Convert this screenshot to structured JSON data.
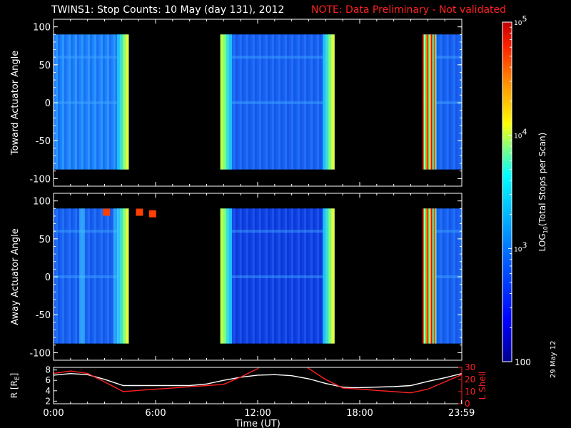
{
  "title": "TWINS1: Stop Counts: 10 May (day 131), 2012",
  "note": "NOTE: Data Preliminary - Not validated",
  "date_stamp": "29 May 12",
  "colors": {
    "note": "#ff2020",
    "r_line": "#ffffff",
    "l_line": "#ff2020",
    "background": "#000000"
  },
  "chart_data": [
    {
      "type": "heatmap",
      "panel": "toward",
      "ylabel": "Toward Actuator Angle",
      "ylim": [
        -110,
        110
      ],
      "yticks": [
        -100,
        -50,
        0,
        50,
        100
      ],
      "xlim": [
        0,
        24
      ],
      "angle_range": [
        -88,
        90
      ],
      "segments": [
        {
          "x_start": 0.0,
          "x_end": 4.4,
          "level": "high-blue",
          "edge_high_end": true
        },
        {
          "x_start": 9.8,
          "x_end": 16.5,
          "level": "blue",
          "edge_high_start": true,
          "edge_high_end": true
        },
        {
          "x_start": 21.7,
          "x_end": 24.0,
          "level": "blue",
          "striped_start": true
        }
      ]
    },
    {
      "type": "heatmap",
      "panel": "away",
      "ylabel": "Away Actuator Angle",
      "ylim": [
        -110,
        110
      ],
      "yticks": [
        -100,
        -50,
        0,
        50,
        100
      ],
      "xlim": [
        0,
        24
      ],
      "angle_range": [
        -88,
        90
      ],
      "segments": [
        {
          "x_start": 0.0,
          "x_end": 4.4,
          "level": "blue",
          "edge_high_end": true,
          "hot_spots_top": true
        },
        {
          "x_start": 9.8,
          "x_end": 16.5,
          "level": "deep-blue",
          "edge_high_start": true,
          "edge_high_end": true
        },
        {
          "x_start": 21.7,
          "x_end": 24.0,
          "level": "blue",
          "striped_start": true
        }
      ]
    },
    {
      "type": "line",
      "panel": "orbit",
      "xlabel": "Time (UT)",
      "xlim": [
        0,
        24
      ],
      "xticks": [
        "0:00",
        "6:00",
        "12:00",
        "18:00",
        "23:59"
      ],
      "xtick_values": [
        0,
        6,
        12,
        18,
        23.983
      ],
      "left_axis": {
        "label": "R [R_E]",
        "label_main": "R [R",
        "label_sub": "E",
        "label_close": "]",
        "ylim": [
          1.5,
          8.5
        ],
        "yticks": [
          2,
          4,
          6,
          8
        ]
      },
      "right_axis": {
        "label": "L Shell",
        "ylim": [
          0,
          30
        ],
        "yticks": [
          0,
          10,
          20,
          30
        ]
      },
      "series": [
        {
          "axis": "left",
          "color": "#ffffff",
          "x": [
            0,
            1,
            2,
            3,
            4.1,
            5,
            6,
            7,
            8,
            9,
            10,
            11,
            12,
            13,
            14,
            15,
            16,
            17,
            17.5,
            18,
            19,
            20,
            21,
            22,
            23,
            24
          ],
          "y": [
            7.0,
            7.3,
            7.1,
            6.2,
            5.0,
            5.0,
            5.0,
            5.0,
            5.0,
            5.3,
            6.0,
            6.6,
            7.0,
            7.1,
            6.9,
            6.3,
            5.4,
            4.7,
            4.6,
            4.6,
            4.7,
            4.8,
            5.0,
            5.8,
            6.5,
            7.3
          ]
        },
        {
          "axis": "right",
          "color": "#ff2020",
          "x": [
            0,
            1,
            2,
            3,
            4.1,
            5,
            6,
            7,
            8,
            9,
            10,
            11,
            12,
            12.2,
            null,
            14.8,
            15.0,
            16,
            17,
            18,
            19,
            20,
            21,
            22,
            23,
            24
          ],
          "y": [
            25,
            27,
            25,
            18,
            10,
            11,
            12,
            13,
            14,
            15,
            16,
            22,
            29,
            32,
            null,
            32,
            29,
            20,
            13,
            12,
            11,
            10,
            9,
            12,
            18,
            24
          ]
        }
      ]
    }
  ],
  "colorbar": {
    "label": "LOG",
    "label_sub": "10",
    "label_rest": "(Total Stops per Scan)",
    "scale": "log",
    "range": [
      100,
      100000
    ],
    "ticks": [
      {
        "value": 100,
        "text": "100",
        "base": "",
        "exp": ""
      },
      {
        "value": 1000,
        "text": "",
        "base": "10",
        "exp": "3"
      },
      {
        "value": 10000,
        "text": "",
        "base": "10",
        "exp": "4"
      },
      {
        "value": 100000,
        "text": "",
        "base": "10",
        "exp": "5"
      }
    ]
  }
}
